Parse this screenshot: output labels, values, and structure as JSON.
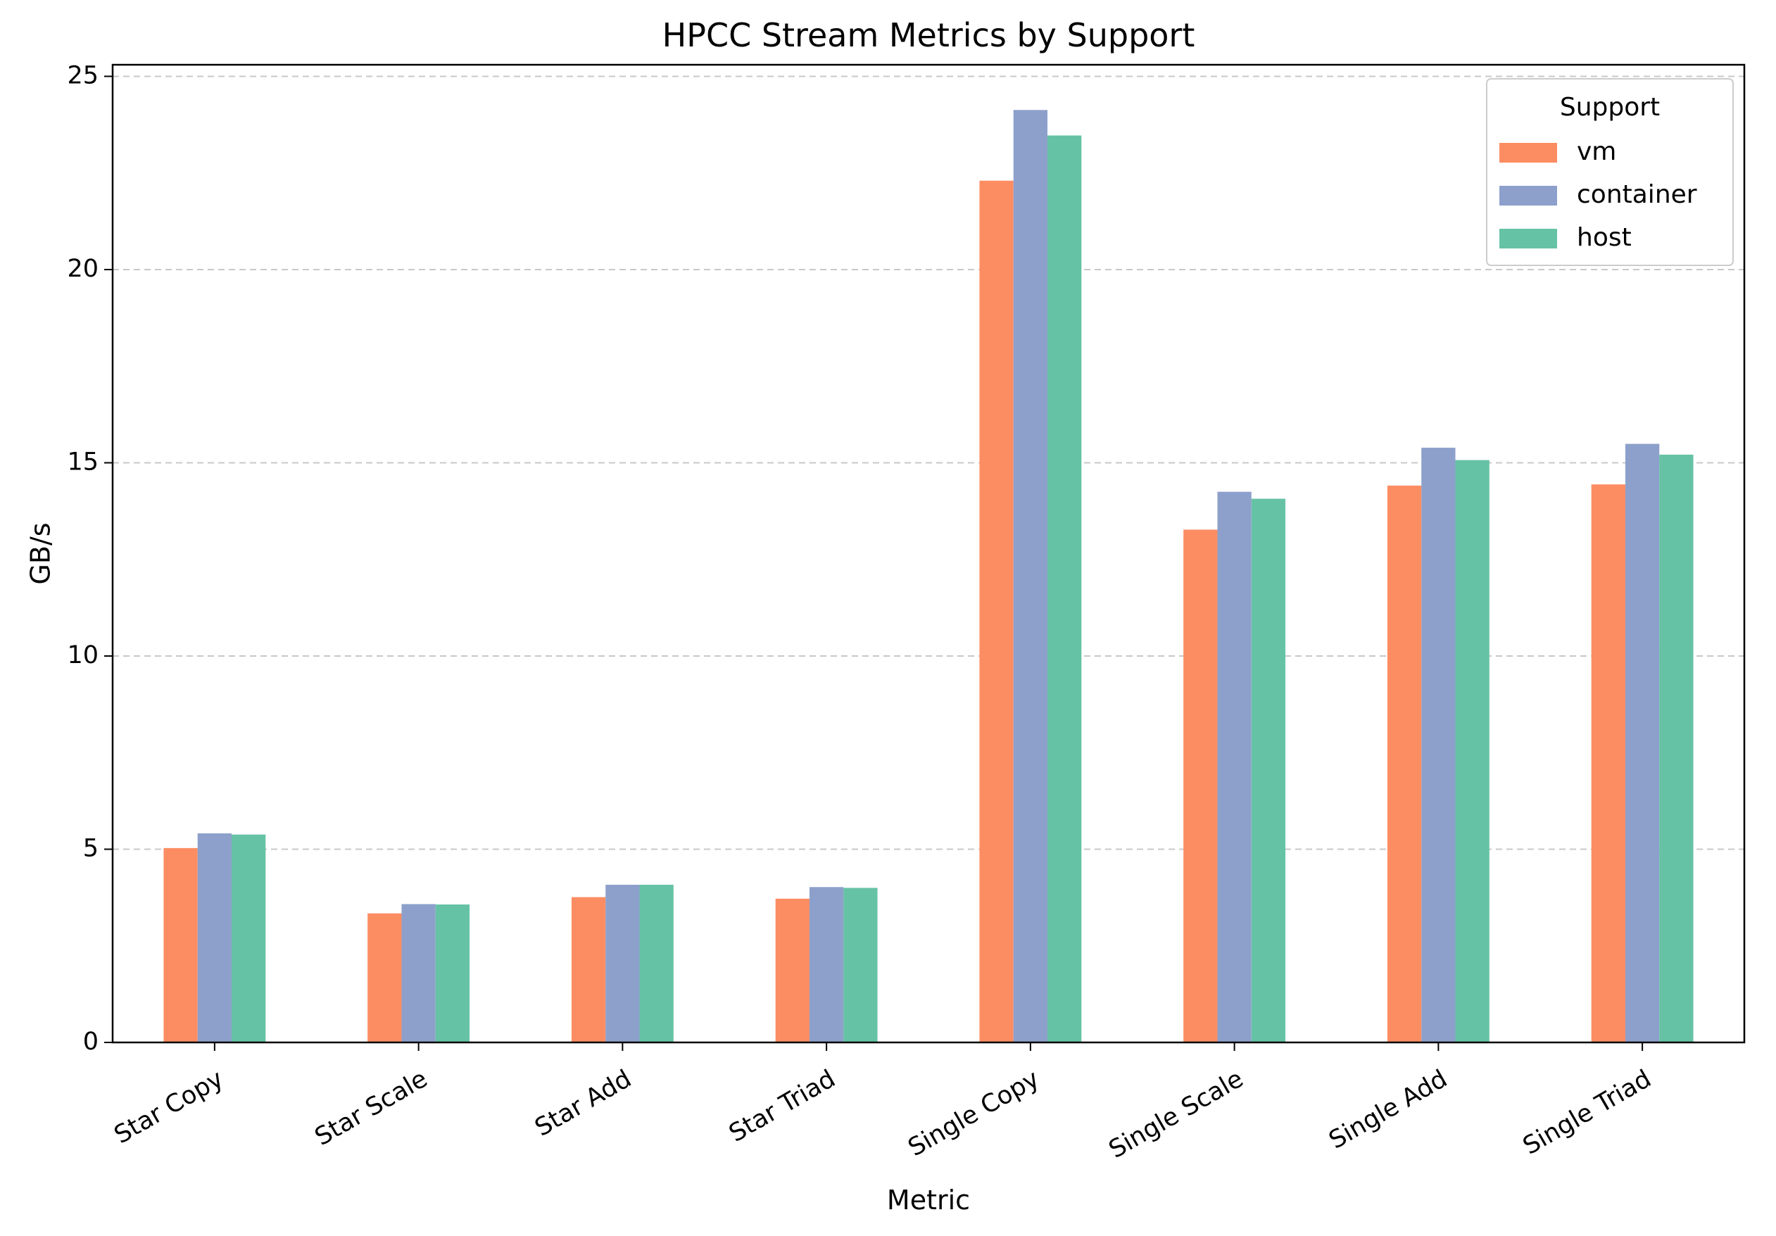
{
  "chart_data": {
    "type": "bar",
    "title": "HPCC Stream Metrics by Support",
    "xlabel": "Metric",
    "ylabel": "GB/s",
    "categories": [
      "Star Copy",
      "Star Scale",
      "Star Add",
      "Star Triad",
      "Single Copy",
      "Single Scale",
      "Single Add",
      "Single Triad"
    ],
    "series": [
      {
        "name": "vm",
        "color": "#fc8d62",
        "values": [
          5.03,
          3.34,
          3.76,
          3.72,
          22.3,
          13.27,
          14.41,
          14.44
        ]
      },
      {
        "name": "container",
        "color": "#8da0cb",
        "values": [
          5.41,
          3.58,
          4.08,
          4.02,
          24.13,
          14.25,
          15.39,
          15.49
        ]
      },
      {
        "name": "host",
        "color": "#66c2a5",
        "values": [
          5.38,
          3.57,
          4.08,
          4.0,
          23.47,
          14.07,
          15.07,
          15.21
        ]
      }
    ],
    "ylim": [
      0,
      25.3
    ],
    "yticks": [
      0,
      5,
      10,
      15,
      20,
      25
    ],
    "grid": "y-dashed",
    "legend": {
      "title": "Support",
      "placement": "top-right"
    },
    "xtick_rotation": 30
  }
}
